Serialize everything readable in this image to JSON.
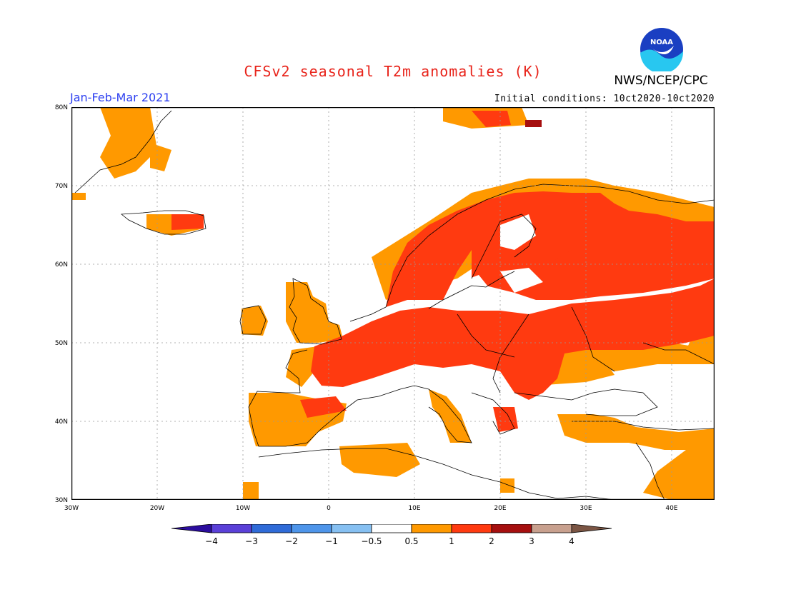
{
  "header": {
    "title": "CFSv2 seasonal T2m anomalies (K)",
    "agency": "NWS/NCEP/CPC",
    "period": "Jan-Feb-Mar 2021",
    "initial_conditions": "Initial conditions: 10ct2020-10ct2020",
    "logo_text": "NOAA"
  },
  "map": {
    "projection": "equirectangular",
    "lon_range": [
      -30,
      45
    ],
    "lat_range": [
      30,
      80
    ],
    "lon_ticks": [
      "30W",
      "20W",
      "10W",
      "0",
      "10E",
      "20E",
      "30E",
      "40E"
    ],
    "lat_ticks": [
      "80N",
      "70N",
      "60N",
      "50N",
      "40N",
      "30N"
    ],
    "gridlines": true
  },
  "colorbar": {
    "labels": [
      "-4",
      "-3",
      "-2",
      "-1",
      "-0.5",
      "0.5",
      "1",
      "2",
      "3",
      "4"
    ],
    "colors": [
      "#2b0d9e",
      "#5a40d8",
      "#2f6bd8",
      "#4e95ea",
      "#86c0f2",
      "#ffffff",
      "#ff9900",
      "#ff3a10",
      "#a60f0f",
      "#c8a08e",
      "#7b5544"
    ]
  },
  "anomaly_regions": [
    {
      "name": "Western Europe",
      "level": "1-2",
      "color": "#ff3a10"
    },
    {
      "name": "Central Europe",
      "level": "1-2",
      "color": "#ff3a10"
    },
    {
      "name": "Scandinavia",
      "level": "1-2",
      "color": "#ff3a10"
    },
    {
      "name": "Western Russia",
      "level": "1-2",
      "color": "#ff3a10"
    },
    {
      "name": "Iberia",
      "level": "0.5-1",
      "color": "#ff9900"
    },
    {
      "name": "British Isles",
      "level": "0.5-1",
      "color": "#ff9900"
    },
    {
      "name": "Turkey",
      "level": "0.5-1",
      "color": "#ff9900"
    },
    {
      "name": "Svalbard",
      "level": "2-3",
      "color": "#a60f0f"
    }
  ]
}
